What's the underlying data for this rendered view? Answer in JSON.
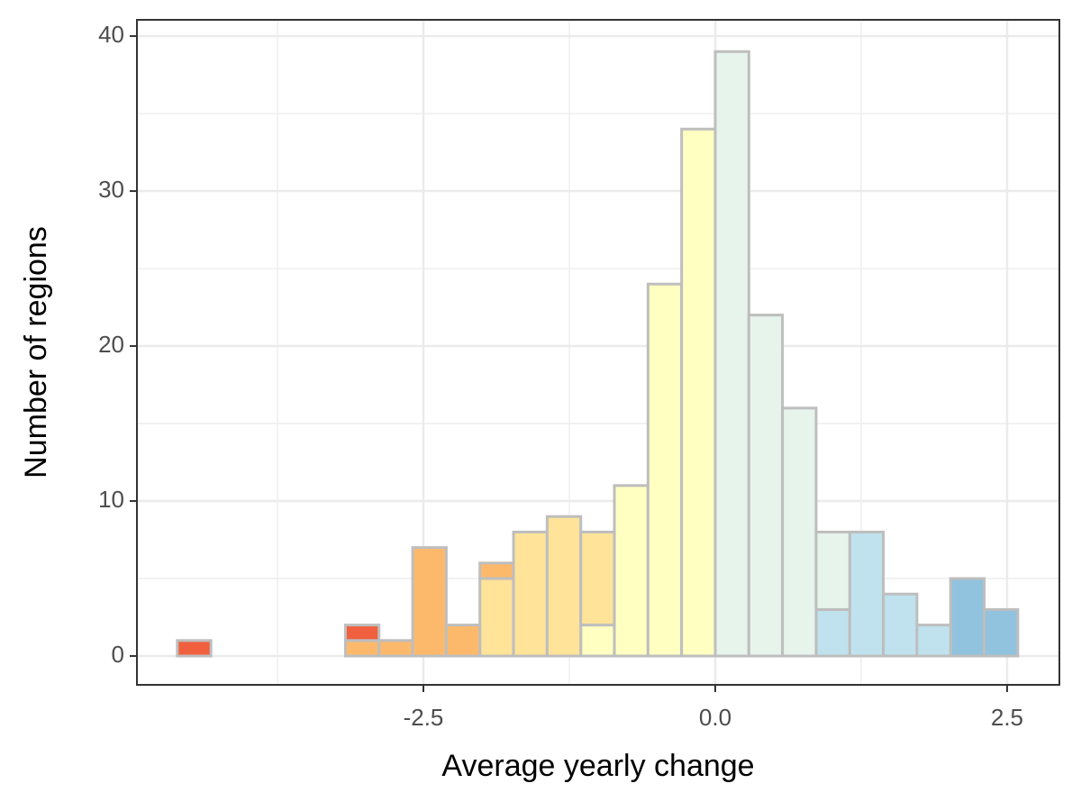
{
  "chart_data": {
    "type": "histogram",
    "x_label": "Average yearly change",
    "y_label": "Number of regions",
    "bins": [
      -4.608,
      -4.32,
      -4.032,
      -3.744,
      -3.456,
      -3.168,
      -2.88,
      -2.592,
      -2.304,
      -2.016,
      -1.728,
      -1.44,
      -1.152,
      -0.864,
      -0.576,
      -0.288,
      0,
      0.288,
      0.576,
      0.864,
      1.152,
      1.44,
      1.728,
      2.016,
      2.304,
      2.592
    ],
    "series": [
      {
        "color": "#91c3de",
        "values": [
          0,
          0,
          0,
          0,
          0,
          0,
          0,
          0,
          0,
          0,
          0,
          0,
          0,
          0,
          0,
          0,
          0,
          0,
          0,
          0,
          0,
          0,
          0,
          5,
          3
        ]
      },
      {
        "color": "#bfe2ee",
        "values": [
          0,
          0,
          0,
          0,
          0,
          0,
          0,
          0,
          0,
          0,
          0,
          0,
          0,
          0,
          0,
          0,
          0,
          0,
          0,
          3,
          8,
          4,
          2,
          0,
          0
        ]
      },
      {
        "color": "#e6f4ec",
        "values": [
          0,
          0,
          0,
          0,
          0,
          0,
          0,
          0,
          0,
          0,
          0,
          0,
          0,
          0,
          0,
          0,
          39,
          22,
          16,
          5,
          0,
          0,
          0,
          0,
          0
        ]
      },
      {
        "color": "#ffffc2",
        "values": [
          0,
          0,
          0,
          0,
          0,
          0,
          0,
          0,
          0,
          0,
          0,
          0,
          2,
          11,
          24,
          34,
          0,
          0,
          0,
          0,
          0,
          0,
          0,
          0,
          0
        ]
      },
      {
        "color": "#fee399",
        "values": [
          0,
          0,
          0,
          0,
          0,
          0,
          0,
          0,
          0,
          5,
          8,
          9,
          6,
          0,
          0,
          0,
          0,
          0,
          0,
          0,
          0,
          0,
          0,
          0,
          0
        ]
      },
      {
        "color": "#fdb96b",
        "values": [
          0,
          0,
          0,
          0,
          0,
          1,
          1,
          7,
          2,
          1,
          0,
          0,
          0,
          0,
          0,
          0,
          0,
          0,
          0,
          0,
          0,
          0,
          0,
          0,
          0
        ]
      },
      {
        "color": "#f0603e",
        "values": [
          1,
          0,
          0,
          0,
          0,
          1,
          0,
          0,
          0,
          0,
          0,
          0,
          0,
          0,
          0,
          0,
          0,
          0,
          0,
          0,
          0,
          0,
          0,
          0,
          0
        ]
      }
    ],
    "xlim": [
      -4.954,
      2.948
    ],
    "xticks": [
      -2.5,
      {
        "value": 0,
        "label": "0.0"
      },
      2.5
    ],
    "ylim": [
      -1.86,
      41.05
    ],
    "yticks": [
      0,
      10,
      20,
      30,
      40
    ],
    "grid": true
  }
}
